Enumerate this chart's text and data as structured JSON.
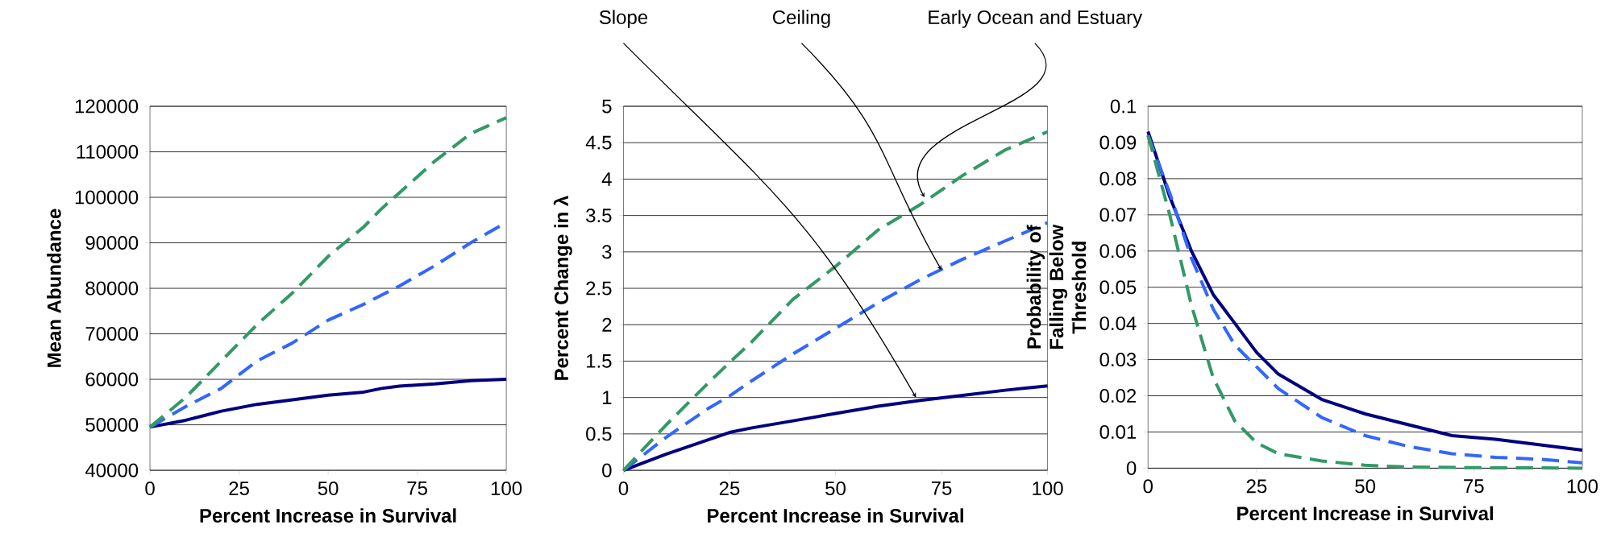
{
  "chart_data": [
    {
      "type": "line",
      "xlabel": "Percent Increase in Survival",
      "ylabel": "Mean Abundance",
      "x": [
        0,
        10,
        20,
        30,
        40,
        50,
        60,
        65,
        70,
        80,
        90,
        100
      ],
      "xlim": [
        0,
        100
      ],
      "ylim": [
        40000,
        120000
      ],
      "xticks": [
        0,
        25,
        50,
        75,
        100
      ],
      "yticks": [
        40000,
        50000,
        60000,
        70000,
        80000,
        90000,
        100000,
        110000,
        120000
      ],
      "grid": "y",
      "series": [
        {
          "color": "#000080",
          "line_style": "solid",
          "values": [
            49500,
            51000,
            53000,
            54500,
            55500,
            56500,
            57200,
            58000,
            58500,
            59000,
            59700,
            60000
          ]
        },
        {
          "color": "#3366ff",
          "line_style": "dashed",
          "values": [
            49500,
            54000,
            58000,
            64000,
            68000,
            73000,
            76500,
            78500,
            80500,
            85000,
            90000,
            94500
          ]
        },
        {
          "color": "#339966",
          "line_style": "dashed",
          "values": [
            49500,
            56000,
            64000,
            72000,
            79000,
            87000,
            93500,
            97500,
            101000,
            108000,
            114000,
            117500
          ]
        }
      ]
    },
    {
      "type": "line",
      "xlabel": "Percent Increase in Survival",
      "ylabel": "Percent Change in λ",
      "x": [
        0,
        10,
        20,
        25,
        30,
        40,
        50,
        60,
        70,
        80,
        90,
        100
      ],
      "xlim": [
        0,
        100
      ],
      "ylim": [
        0,
        5
      ],
      "xticks": [
        0,
        25,
        50,
        75,
        100
      ],
      "yticks": [
        0,
        0.5,
        1,
        1.5,
        2,
        2.5,
        3,
        3.5,
        4,
        4.5,
        5
      ],
      "grid": "y",
      "series": [
        {
          "color": "#000080",
          "line_style": "solid",
          "values": [
            0,
            0.22,
            0.42,
            0.52,
            0.58,
            0.68,
            0.78,
            0.88,
            0.96,
            1.03,
            1.1,
            1.16
          ]
        },
        {
          "color": "#3366ff",
          "line_style": "dashed",
          "values": [
            0,
            0.45,
            0.85,
            1.02,
            1.22,
            1.6,
            1.95,
            2.3,
            2.62,
            2.9,
            3.15,
            3.4
          ]
        },
        {
          "color": "#339966",
          "line_style": "dashed",
          "values": [
            0,
            0.62,
            1.2,
            1.48,
            1.75,
            2.35,
            2.8,
            3.3,
            3.65,
            4.05,
            4.4,
            4.65
          ]
        }
      ],
      "annotations": [
        {
          "text": "Slope",
          "x": 69,
          "y": 1.0
        },
        {
          "text": "Ceiling",
          "x": 75,
          "y": 2.75
        },
        {
          "text": "Early Ocean and Estuary",
          "x": 71,
          "y": 3.75
        }
      ]
    },
    {
      "type": "line",
      "xlabel": "Percent Increase in Survival",
      "ylabel": "Probability of Falling Below Threshold",
      "x": [
        0,
        5,
        10,
        15,
        20,
        25,
        30,
        40,
        50,
        60,
        70,
        80,
        90,
        100
      ],
      "xlim": [
        0,
        100
      ],
      "ylim": [
        0,
        0.1
      ],
      "xticks": [
        0,
        25,
        50,
        75,
        100
      ],
      "yticks": [
        0,
        0.01,
        0.02,
        0.03,
        0.04,
        0.05,
        0.06,
        0.07,
        0.08,
        0.09,
        0.1
      ],
      "grid": "y",
      "series": [
        {
          "color": "#000080",
          "line_style": "solid",
          "values": [
            0.093,
            0.075,
            0.06,
            0.048,
            0.04,
            0.032,
            0.026,
            0.019,
            0.015,
            0.012,
            0.009,
            0.008,
            0.0065,
            0.005
          ]
        },
        {
          "color": "#3366ff",
          "line_style": "dashed",
          "values": [
            0.092,
            0.076,
            0.058,
            0.044,
            0.034,
            0.028,
            0.022,
            0.014,
            0.009,
            0.006,
            0.004,
            0.003,
            0.0025,
            0.0015
          ]
        },
        {
          "color": "#339966",
          "line_style": "dashed",
          "values": [
            0.092,
            0.07,
            0.045,
            0.025,
            0.013,
            0.007,
            0.004,
            0.002,
            0.0008,
            0.0003,
            0.0002,
            0.0001,
            0.0001,
            0
          ]
        }
      ]
    }
  ]
}
